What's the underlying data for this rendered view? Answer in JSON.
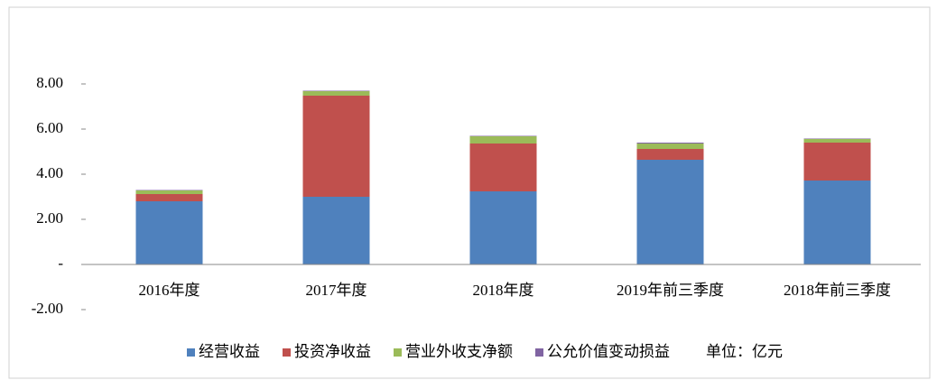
{
  "chart_data": {
    "type": "stacked_bar",
    "categories": [
      "2016年度",
      "2017年度",
      "2018年度",
      "2019年前三季度",
      "2018年前三季度"
    ],
    "series": [
      {
        "name": "经营收益",
        "color": "#4f81bd",
        "values": [
          2.8,
          3.0,
          3.24,
          4.64,
          3.72
        ]
      },
      {
        "name": "投资净收益",
        "color": "#c0504d",
        "values": [
          0.32,
          4.48,
          2.12,
          0.48,
          1.68
        ]
      },
      {
        "name": "营业外收支净额",
        "color": "#9bbb59",
        "values": [
          0.16,
          0.2,
          0.32,
          0.24,
          0.16
        ]
      },
      {
        "name": "公允价值变动损益",
        "color": "#8064a2",
        "values": [
          0.02,
          0.02,
          0.02,
          0.04,
          0.02
        ]
      }
    ],
    "unit_note": "单位：亿元",
    "ylim": [
      -2,
      10
    ],
    "yticks": [
      {
        "value": -2,
        "label": "-2.00"
      },
      {
        "value": 0,
        "label": "-"
      },
      {
        "value": 2,
        "label": "2.00"
      },
      {
        "value": 4,
        "label": "4.00"
      },
      {
        "value": 6,
        "label": "6.00"
      },
      {
        "value": 8,
        "label": "8.00"
      }
    ],
    "legend": "bottom"
  }
}
